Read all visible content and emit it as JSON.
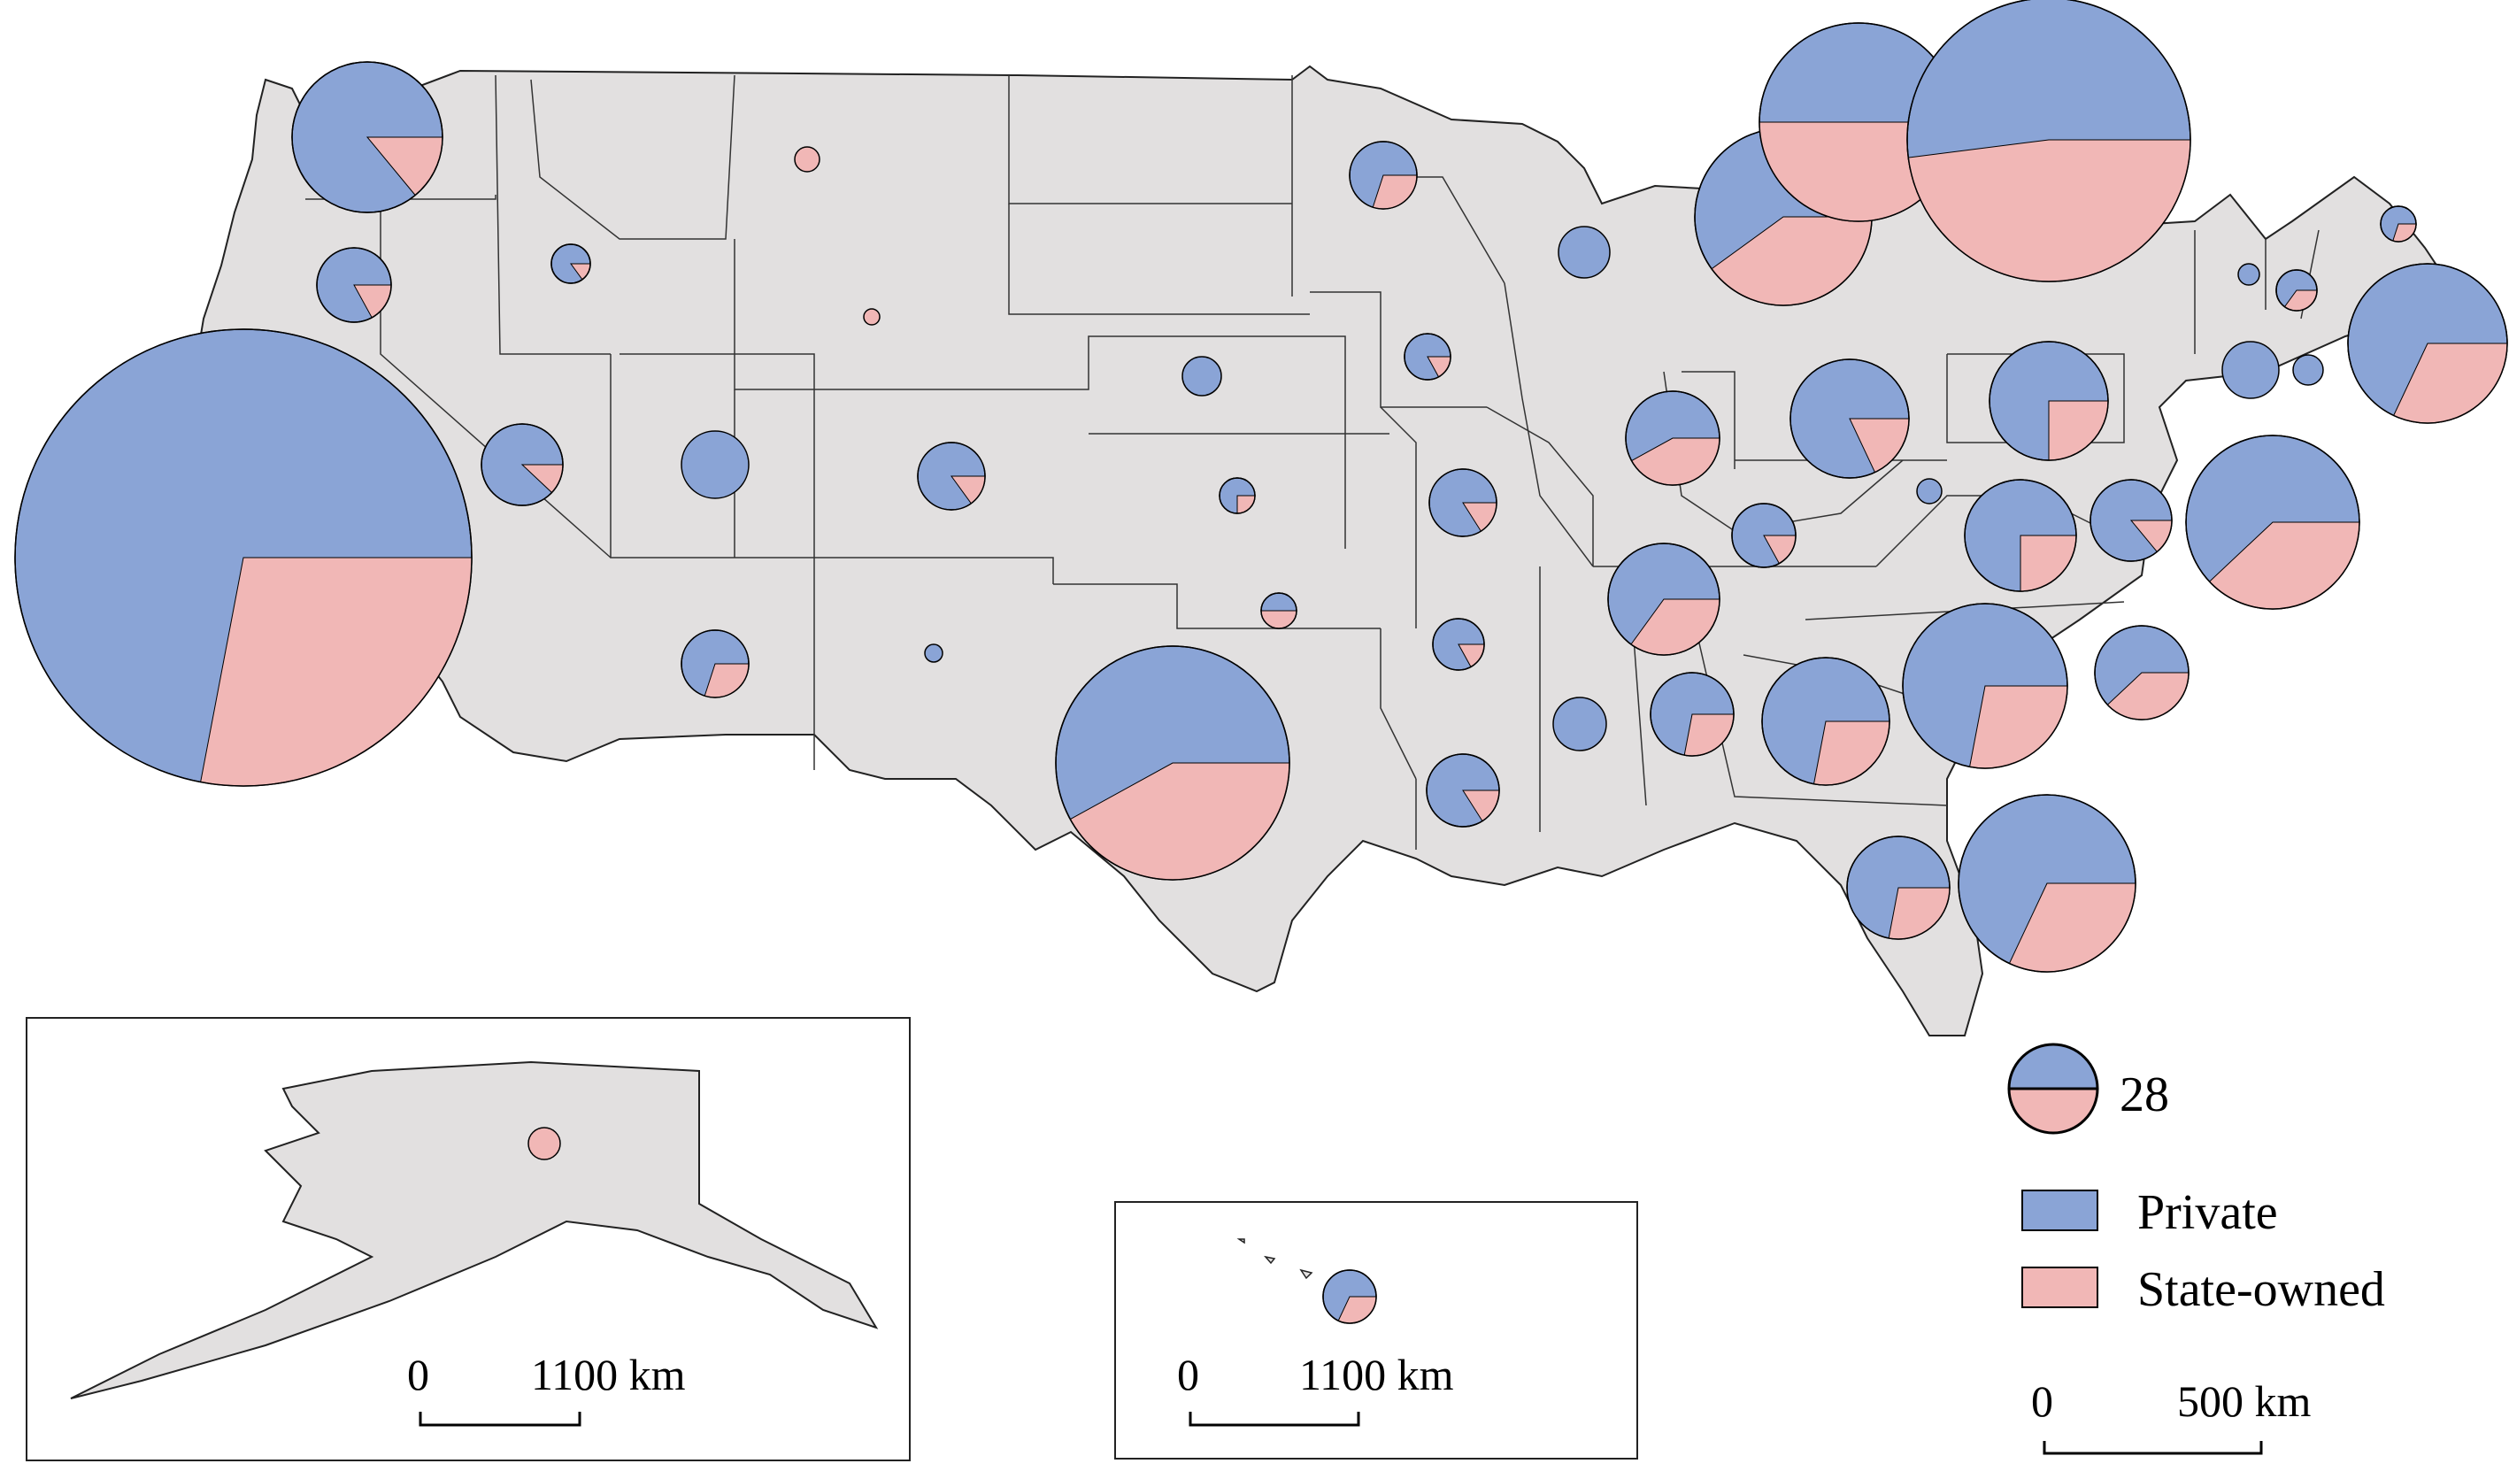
{
  "legend": {
    "size_value": "28",
    "private_label": "Private",
    "state_label": "State-owned"
  },
  "scale_bars": {
    "main": {
      "start": "0",
      "end": "500 km"
    },
    "alaska": {
      "start": "0",
      "end": "1100 km"
    },
    "hawaii": {
      "start": "0",
      "end": "1100 km"
    }
  },
  "colors": {
    "private": "#8aa4d6",
    "state": "#f1b7b6",
    "land": "#e2e0e0",
    "border": "#333333"
  },
  "state_pies": [
    {
      "state": "WA",
      "state_share": 0.14
    },
    {
      "state": "OR",
      "state_share": 0.17
    },
    {
      "state": "CA",
      "state_share": 0.28
    },
    {
      "state": "ID",
      "state_share": 0.15
    },
    {
      "state": "NV",
      "state_share": 0.12
    },
    {
      "state": "MT",
      "state_share": 1.0
    },
    {
      "state": "UT",
      "state_share": 0.0
    },
    {
      "state": "WY",
      "state_share": 1.0
    },
    {
      "state": "CO",
      "state_share": 0.15
    },
    {
      "state": "AZ",
      "state_share": 0.3
    },
    {
      "state": "NM",
      "state_share": 0.0
    },
    {
      "state": "NE",
      "state_share": 0.0
    },
    {
      "state": "KS",
      "state_share": 0.25
    },
    {
      "state": "OK",
      "state_share": 0.5
    },
    {
      "state": "TX",
      "state_share": 0.42
    },
    {
      "state": "MN",
      "state_share": 0.3
    },
    {
      "state": "IA",
      "state_share": 0.17
    },
    {
      "state": "MO",
      "state_share": 0.16
    },
    {
      "state": "AR",
      "state_share": 0.17
    },
    {
      "state": "LA",
      "state_share": 0.16
    },
    {
      "state": "WI",
      "state_share": 0.0
    },
    {
      "state": "IL",
      "state_share": 0.42
    },
    {
      "state": "MI",
      "state_share": 0.4
    },
    {
      "state": "IN",
      "state_share": 0.5
    },
    {
      "state": "OH",
      "state_share": 0.18
    },
    {
      "state": "KY",
      "state_share": 0.17
    },
    {
      "state": "TN",
      "state_share": 0.35
    },
    {
      "state": "MS",
      "state_share": 0.0
    },
    {
      "state": "AL",
      "state_share": 0.28
    },
    {
      "state": "GA",
      "state_share": 0.28
    },
    {
      "state": "FL",
      "state_share": 0.28
    },
    {
      "state": "SC",
      "state_share": 0.32
    },
    {
      "state": "NC",
      "state_share": 0.28
    },
    {
      "state": "VA",
      "state_share": 0.25
    },
    {
      "state": "WV",
      "state_share": 0.0
    },
    {
      "state": "PA",
      "state_share": 0.25
    },
    {
      "state": "NY",
      "state_share": 0.48
    },
    {
      "state": "MD",
      "state_share": 0.14
    },
    {
      "state": "DE",
      "state_share": 0.38
    },
    {
      "state": "NJ",
      "state_share": 0.38
    },
    {
      "state": "CT",
      "state_share": 0.0
    },
    {
      "state": "RI",
      "state_share": 0.0
    },
    {
      "state": "MA",
      "state_share": 0.32
    },
    {
      "state": "VT",
      "state_share": 0.0
    },
    {
      "state": "NH",
      "state_share": 0.35
    },
    {
      "state": "ME",
      "state_share": 0.3
    },
    {
      "state": "AK",
      "state_share": 1.0
    },
    {
      "state": "HI",
      "state_share": 0.32
    }
  ]
}
